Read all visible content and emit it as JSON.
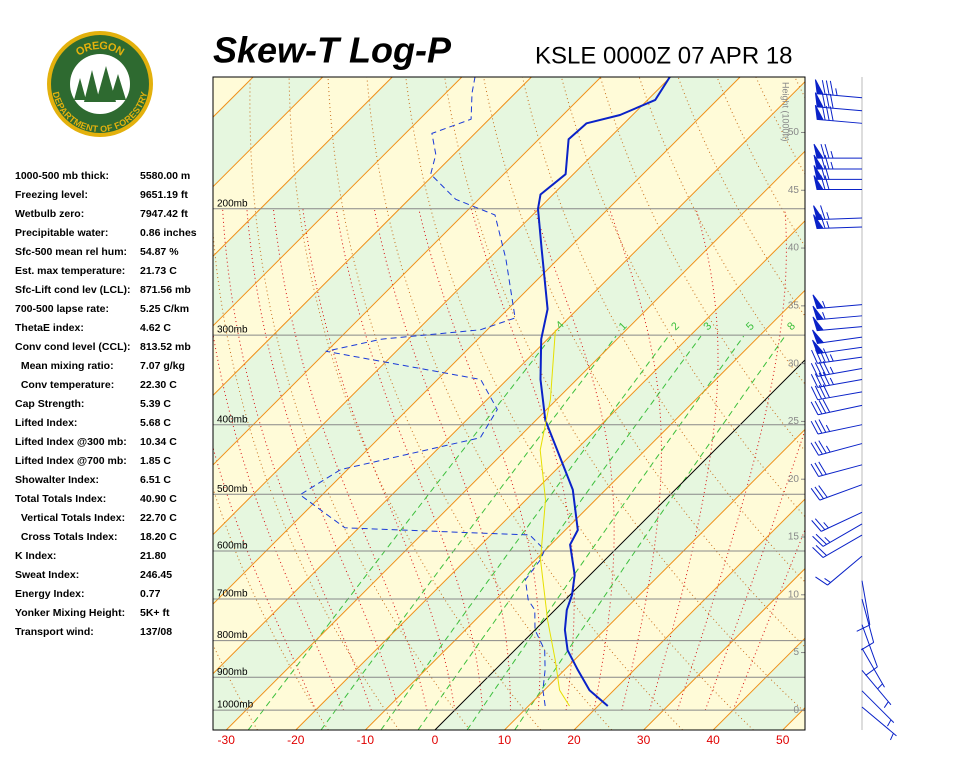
{
  "logo": {
    "top": "OREGON",
    "bottom": "DEPARTMENT OF FORESTRY"
  },
  "stats": [
    [
      "1000-500 mb thick:",
      "5580.00 m"
    ],
    [
      "Freezing level:",
      "9651.19 ft"
    ],
    [
      "Wetbulb zero:",
      "7947.42 ft"
    ],
    [
      "Precipitable water:",
      "0.86 inches"
    ],
    [
      "Sfc-500 mean rel hum:",
      "54.87 %"
    ],
    [
      "Est. max temperature:",
      "21.73 C"
    ],
    [
      "Sfc-Lift cond lev (LCL):",
      "871.56 mb"
    ],
    [
      "700-500 lapse rate:",
      "5.25 C/km"
    ],
    [
      "ThetaE index:",
      "4.62 C"
    ],
    [
      "Conv cond level (CCL):",
      "813.52 mb"
    ],
    [
      "  Mean mixing ratio:",
      "7.07 g/kg"
    ],
    [
      "  Conv temperature:",
      "22.30 C"
    ],
    [
      "Cap Strength:",
      "5.39 C"
    ],
    [
      "Lifted Index:",
      "5.68 C"
    ],
    [
      "Lifted Index @300 mb:",
      "10.34 C"
    ],
    [
      "Lifted Index @700 mb:",
      "1.85 C"
    ],
    [
      "Showalter Index:",
      "6.51 C"
    ],
    [
      "Total Totals Index:",
      "40.90 C"
    ],
    [
      "  Vertical Totals Index:",
      "22.70 C"
    ],
    [
      "  Cross Totals Index:",
      "18.20 C"
    ],
    [
      "K Index:",
      "21.80"
    ],
    [
      "Sweat Index:",
      "246.45"
    ],
    [
      "Energy Index:",
      "0.77"
    ],
    [
      "Yonker Mixing Height:",
      "5K+ ft"
    ],
    [
      "Transport wind:",
      "137/08"
    ]
  ],
  "chart_data": {
    "type": "skewt",
    "title": "Skew-T Log-P",
    "subtitle": "KSLE 0000Z 07 APR 18",
    "xlim": [
      -31.9,
      53.2
    ],
    "xticks": [
      -30,
      -20,
      -10,
      0,
      10,
      20,
      30,
      40,
      50
    ],
    "ylim": [
      1066,
      131
    ],
    "ylog": true,
    "yticks": [
      {
        "value": 1000,
        "label": "1000mb"
      },
      {
        "value": 900,
        "label": "900mb"
      },
      {
        "value": 800,
        "label": "800mb"
      },
      {
        "value": 700,
        "label": "700mb"
      },
      {
        "value": 600,
        "label": "600mb"
      },
      {
        "value": 500,
        "label": "500mb"
      },
      {
        "value": 400,
        "label": "400mb"
      },
      {
        "value": 300,
        "label": "300mb"
      },
      {
        "value": 200,
        "label": "200mb"
      }
    ],
    "y2lim": [
      -1.7,
      54.8
    ],
    "y2ticks": [
      0,
      5,
      10,
      15,
      20,
      25,
      30,
      35,
      40,
      45,
      50
    ],
    "y2label": "Height (1000ft)",
    "mixing_ratio_ticks": [
      {
        "value": 0.4,
        "label": ".4"
      },
      1,
      2,
      3,
      5,
      8
    ],
    "series": [
      {
        "color": "#0a22c8",
        "dash": false,
        "width": 2,
        "pressure": [
          987,
          938,
          879,
          825,
          773,
          725,
          691,
          648,
          588,
          561,
          493,
          440,
          394,
          346,
          304,
          276,
          228,
          200,
          191,
          179,
          160,
          152,
          148,
          141,
          131
        ],
        "values": [
          21.4,
          16.5,
          11.9,
          7.6,
          4.3,
          1.7,
          0.3,
          -2.2,
          -7.2,
          -8.2,
          -14.7,
          -21.8,
          -28.7,
          -35.2,
          -40.9,
          -44.3,
          -53.7,
          -60.1,
          -61.8,
          -61.1,
          -65.7,
          -65.4,
          -61.8,
          -58.9,
          -60.1
        ]
      },
      {
        "color": "#1a3ad8",
        "dash": true,
        "width": 1,
        "pressure": [
          987,
          938,
          879,
          825,
          773,
          725,
          702,
          658,
          617,
          598,
          570,
          557,
          501,
          462,
          417,
          381,
          346,
          316,
          304,
          295,
          284,
          235,
          204,
          194,
          179,
          168,
          157,
          150,
          138,
          131
        ],
        "values": [
          12.4,
          9.8,
          7.2,
          4.3,
          0,
          -2.9,
          -5.3,
          -8.6,
          -9.3,
          -10.1,
          -14.4,
          -42.0,
          -53.2,
          -51.0,
          -35.5,
          -37.1,
          -43.8,
          -70.1,
          -63.9,
          -51.0,
          -47.7,
          -57.5,
          -65.4,
          -73.3,
          -80.5,
          -82.6,
          -86.2,
          -82.6,
          -86.2,
          -88.1
        ]
      },
      {
        "color": "#e6e000",
        "dash": false,
        "width": 1,
        "pressure": [
          987,
          938,
          851,
          749,
          617,
          509,
          434,
          369,
          295
        ],
        "values": [
          15.9,
          12.2,
          7.2,
          0.4,
          -9.3,
          -17.2,
          -25.1,
          -30.9,
          -40.2
        ]
      }
    ],
    "winds": {
      "color": "#0a22c8",
      "pressure": [
        140,
        146,
        152,
        170,
        176,
        182,
        188,
        206,
        212,
        272,
        282,
        292,
        302,
        312,
        322,
        334,
        346,
        360,
        376,
        400,
        425,
        455,
        485,
        530,
        550,
        570,
        610,
        660,
        700,
        760,
        820,
        880,
        940,
        990
      ],
      "direction": [
        275,
        275,
        275,
        270,
        270,
        270,
        270,
        268,
        268,
        265,
        265,
        265,
        262,
        262,
        262,
        260,
        260,
        260,
        258,
        258,
        255,
        255,
        250,
        245,
        240,
        240,
        230,
        170,
        165,
        160,
        150,
        140,
        135,
        130
      ],
      "speed": [
        85,
        80,
        80,
        75,
        75,
        70,
        70,
        65,
        65,
        55,
        55,
        50,
        50,
        50,
        45,
        45,
        45,
        40,
        40,
        35,
        35,
        30,
        30,
        25,
        25,
        20,
        15,
        10,
        10,
        10,
        5,
        5,
        5,
        5
      ]
    }
  }
}
